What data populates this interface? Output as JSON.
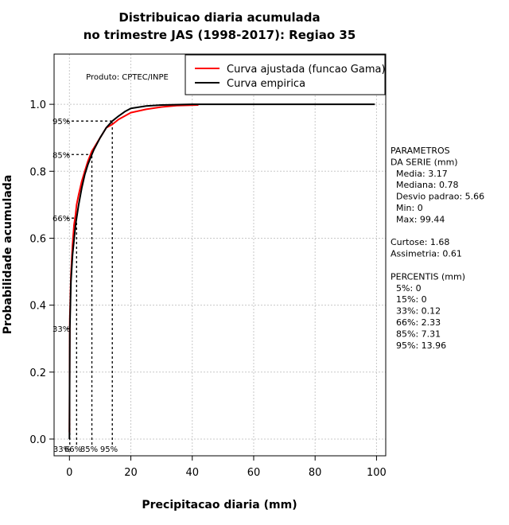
{
  "chart_data": {
    "type": "line",
    "title_line1": "Distribuicao diaria acumulada",
    "title_line2": "no trimestre JAS (1998-2017): Regiao 35",
    "xlabel": "Precipitacao diaria (mm)",
    "ylabel": "Probabilidade acumulada",
    "xlim": [
      -5,
      103
    ],
    "ylim": [
      -0.05,
      1.15
    ],
    "x_ticks": [
      0,
      20,
      40,
      60,
      80,
      100
    ],
    "y_ticks": [
      0.0,
      0.2,
      0.4,
      0.6,
      0.8,
      1.0
    ],
    "x_tick_labels": [
      "0",
      "20",
      "40",
      "60",
      "80",
      "100"
    ],
    "y_tick_labels": [
      "0.0",
      "0.2",
      "0.4",
      "0.6",
      "0.8",
      "1.0"
    ],
    "grid": true,
    "product_label": "Produto: CPTEC/INPE",
    "legend_position": "top-right",
    "series": [
      {
        "name": "Curva ajustada (funcao Gama)",
        "color": "#ff0000",
        "x": [
          0,
          0.12,
          0.5,
          1,
          1.5,
          2,
          2.33,
          3,
          4,
          5,
          6,
          7.31,
          8,
          10,
          12,
          13.96,
          16,
          18,
          20,
          25,
          30,
          35,
          42
        ],
        "y": [
          0.02,
          0.36,
          0.49,
          0.58,
          0.64,
          0.67,
          0.7,
          0.73,
          0.77,
          0.8,
          0.83,
          0.86,
          0.87,
          0.9,
          0.93,
          0.94,
          0.955,
          0.965,
          0.975,
          0.985,
          0.992,
          0.996,
          0.998
        ]
      },
      {
        "name": "Curva empirica",
        "color": "#000000",
        "x": [
          0,
          0.12,
          0.5,
          1,
          2,
          2.33,
          3,
          4,
          5,
          6,
          7.31,
          8,
          10,
          12,
          13.96,
          16,
          18,
          20,
          25,
          30,
          40,
          60,
          99.44
        ],
        "y": [
          0.0,
          0.33,
          0.47,
          0.55,
          0.64,
          0.66,
          0.7,
          0.75,
          0.79,
          0.82,
          0.85,
          0.865,
          0.9,
          0.93,
          0.95,
          0.965,
          0.978,
          0.988,
          0.995,
          0.998,
          1.0,
          1.0,
          1.0
        ]
      }
    ],
    "percentile_markers": [
      {
        "label": "33%",
        "x": 0.12,
        "y": 0.33
      },
      {
        "label": "66%",
        "x": 2.33,
        "y": 0.66
      },
      {
        "label": "85%",
        "x": 7.31,
        "y": 0.85
      },
      {
        "label": "95%",
        "x": 13.96,
        "y": 0.95
      }
    ]
  },
  "stats_panel": {
    "lines": [
      "PARAMETROS",
      "DA SERIE (mm)",
      "  Media: 3.17",
      "  Mediana: 0.78",
      "  Desvio padrao: 5.66",
      "  Min: 0",
      "  Max: 99.44",
      "",
      "Curtose: 1.68",
      "Assimetria: 0.61",
      "",
      "PERCENTIS (mm)",
      "  5%: 0",
      "  15%: 0",
      "  33%: 0.12",
      "  66%: 2.33",
      "  85%: 7.31",
      "  95%: 13.96"
    ]
  }
}
